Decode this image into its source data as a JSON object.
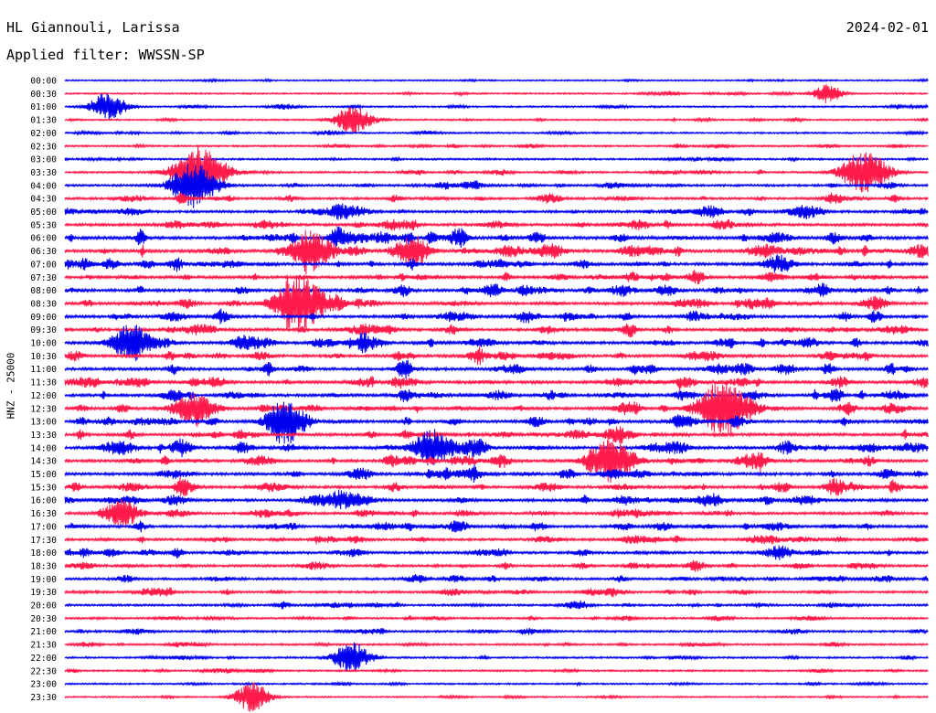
{
  "header": {
    "station": "HL Giannouli, Larissa",
    "date": "2024-02-01",
    "filter": "Applied filter: WWSSN-SP"
  },
  "chart_data": {
    "type": "line",
    "ylabel": "HNZ - 25000",
    "rows": [
      "00:00",
      "00:30",
      "01:00",
      "01:30",
      "02:00",
      "02:30",
      "03:00",
      "03:30",
      "04:00",
      "04:30",
      "05:00",
      "05:30",
      "06:00",
      "06:30",
      "07:00",
      "07:30",
      "08:00",
      "08:30",
      "09:00",
      "09:30",
      "10:00",
      "10:30",
      "11:00",
      "11:30",
      "12:00",
      "12:30",
      "13:00",
      "13:30",
      "14:00",
      "14:30",
      "15:00",
      "15:30",
      "16:00",
      "16:30",
      "17:00",
      "17:30",
      "18:00",
      "18:30",
      "19:00",
      "19:30",
      "20:00",
      "20:30",
      "21:00",
      "21:30",
      "22:00",
      "22:30",
      "23:00",
      "23:30"
    ],
    "row_activity": [
      0.15,
      0.2,
      0.25,
      0.25,
      0.3,
      0.35,
      0.35,
      0.4,
      0.55,
      0.6,
      0.7,
      0.8,
      1.0,
      1.0,
      0.9,
      0.85,
      0.85,
      0.85,
      0.85,
      0.85,
      0.85,
      0.85,
      0.85,
      0.85,
      0.85,
      0.85,
      0.85,
      0.85,
      0.85,
      0.85,
      0.85,
      0.8,
      0.8,
      0.75,
      0.75,
      0.7,
      0.7,
      0.65,
      0.6,
      0.55,
      0.5,
      0.45,
      0.45,
      0.4,
      0.35,
      0.3,
      0.25,
      0.2
    ],
    "events": [
      {
        "row": 2,
        "minute": 1.5,
        "amp": 2.0
      },
      {
        "row": 3,
        "minute": 10.0,
        "amp": 2.0
      },
      {
        "row": 1,
        "minute": 26.5,
        "amp": 1.3
      },
      {
        "row": 7,
        "minute": 4.7,
        "amp": 3.5
      },
      {
        "row": 7,
        "minute": 27.8,
        "amp": 3.0
      },
      {
        "row": 8,
        "minute": 4.5,
        "amp": 3.0
      },
      {
        "row": 13,
        "minute": 8.5,
        "amp": 2.5
      },
      {
        "row": 13,
        "minute": 12.0,
        "amp": 2.0
      },
      {
        "row": 17,
        "minute": 8.2,
        "amp": 3.5
      },
      {
        "row": 20,
        "minute": 2.3,
        "amp": 2.5
      },
      {
        "row": 25,
        "minute": 4.5,
        "amp": 2.5
      },
      {
        "row": 25,
        "minute": 23.0,
        "amp": 3.5
      },
      {
        "row": 26,
        "minute": 7.7,
        "amp": 2.5
      },
      {
        "row": 28,
        "minute": 12.8,
        "amp": 2.5
      },
      {
        "row": 29,
        "minute": 19.0,
        "amp": 3.0
      },
      {
        "row": 33,
        "minute": 2.0,
        "amp": 2.0
      },
      {
        "row": 44,
        "minute": 10.0,
        "amp": 2.0
      },
      {
        "row": 47,
        "minute": 6.5,
        "amp": 2.0
      }
    ],
    "colors": {
      "even_rows": "#0000ee",
      "odd_rows": "#ff1a4a",
      "text": "#000000"
    }
  }
}
